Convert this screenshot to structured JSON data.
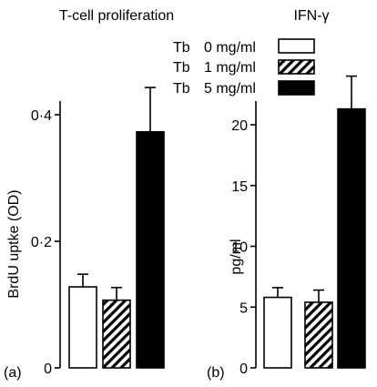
{
  "chart_data": [
    {
      "type": "bar",
      "panel_label": "(a)",
      "title": "T-cell proliferation",
      "xlabel": "",
      "ylabel": "BrdU uptke (OD)",
      "ylim": [
        0,
        0.4
      ],
      "yticks": [
        0,
        0.2,
        0.4
      ],
      "ytick_labels": [
        "0",
        "0·2",
        "0·4"
      ],
      "categories": [
        "Tb 0 mg/ml",
        "Tb 1 mg/ml",
        "Tb 5 mg/ml"
      ],
      "values": [
        0.128,
        0.107,
        0.373
      ],
      "error_bars": [
        0.02,
        0.02,
        0.07
      ],
      "fills": [
        "white",
        "hatched",
        "black"
      ]
    },
    {
      "type": "bar",
      "panel_label": "(b)",
      "title": "IFN-γ",
      "xlabel": "",
      "ylabel": "pg/ml",
      "ylim": [
        0,
        20
      ],
      "yticks": [
        0,
        5,
        10,
        15,
        20
      ],
      "ytick_labels": [
        "0",
        "5",
        "10",
        "15",
        "20"
      ],
      "categories": [
        "Tb 0 mg/ml",
        "Tb 1 mg/ml",
        "Tb 5 mg/ml"
      ],
      "values": [
        5.8,
        5.4,
        21.3
      ],
      "error_bars": [
        0.8,
        1.0,
        2.7
      ],
      "fills": [
        "white",
        "hatched",
        "black"
      ]
    }
  ],
  "legend": {
    "placement": "top-center",
    "items": [
      {
        "prefix": "Tb",
        "dose": "0 mg/ml",
        "fill": "white"
      },
      {
        "prefix": "Tb",
        "dose": "1 mg/ml",
        "fill": "hatched"
      },
      {
        "prefix": "Tb",
        "dose": "5 mg/ml",
        "fill": "black"
      }
    ]
  },
  "colors": {
    "ink": "#000000",
    "background": "#ffffff"
  }
}
